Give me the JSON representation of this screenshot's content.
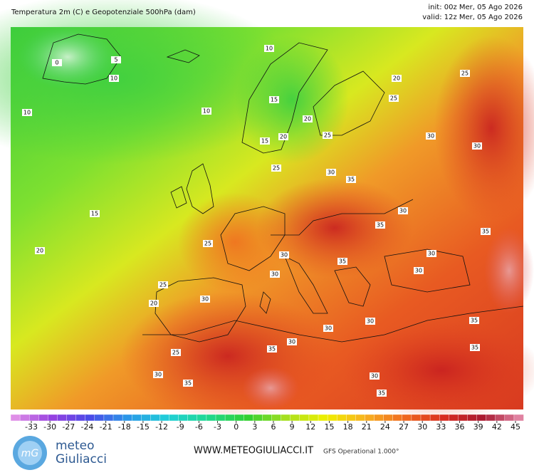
{
  "header": {
    "title": "Temperatura 2m (C) e Geopotenziale 500hPa (dam)",
    "init": "init: 00z Mer, 05 Ago 2026",
    "valid": "valid: 12z Mer, 05 Ago 2026"
  },
  "map": {
    "contour_labels": [
      0,
      5,
      10,
      10,
      10,
      10,
      15,
      20,
      20,
      25,
      25,
      20,
      15,
      25,
      30,
      30,
      25,
      30,
      35,
      15,
      20,
      25,
      30,
      35,
      35,
      30,
      30,
      30,
      35,
      30,
      25,
      30,
      20,
      30,
      30,
      35,
      30,
      35,
      35,
      25,
      30,
      35,
      30,
      35
    ]
  },
  "colorbar": {
    "ticks": [
      -33,
      -30,
      -27,
      -24,
      -21,
      -18,
      -15,
      -12,
      -9,
      -6,
      -3,
      0,
      3,
      6,
      9,
      12,
      15,
      18,
      21,
      24,
      27,
      30,
      33,
      36,
      39,
      42,
      45
    ],
    "colors": [
      "#e89ae8",
      "#9a40e0",
      "#4a4ae8",
      "#2a9ae8",
      "#20d0d8",
      "#20d890",
      "#30d030",
      "#a8e020",
      "#f0f000",
      "#f8b020",
      "#f06a20",
      "#d82a20",
      "#a81830",
      "#e890b0"
    ]
  },
  "footer": {
    "brand_top": "meteo",
    "brand_bottom": "Giuliacci",
    "url": "WWW.METEOGIULIACCI.IT",
    "model": "GFS Operational 1.000°"
  }
}
